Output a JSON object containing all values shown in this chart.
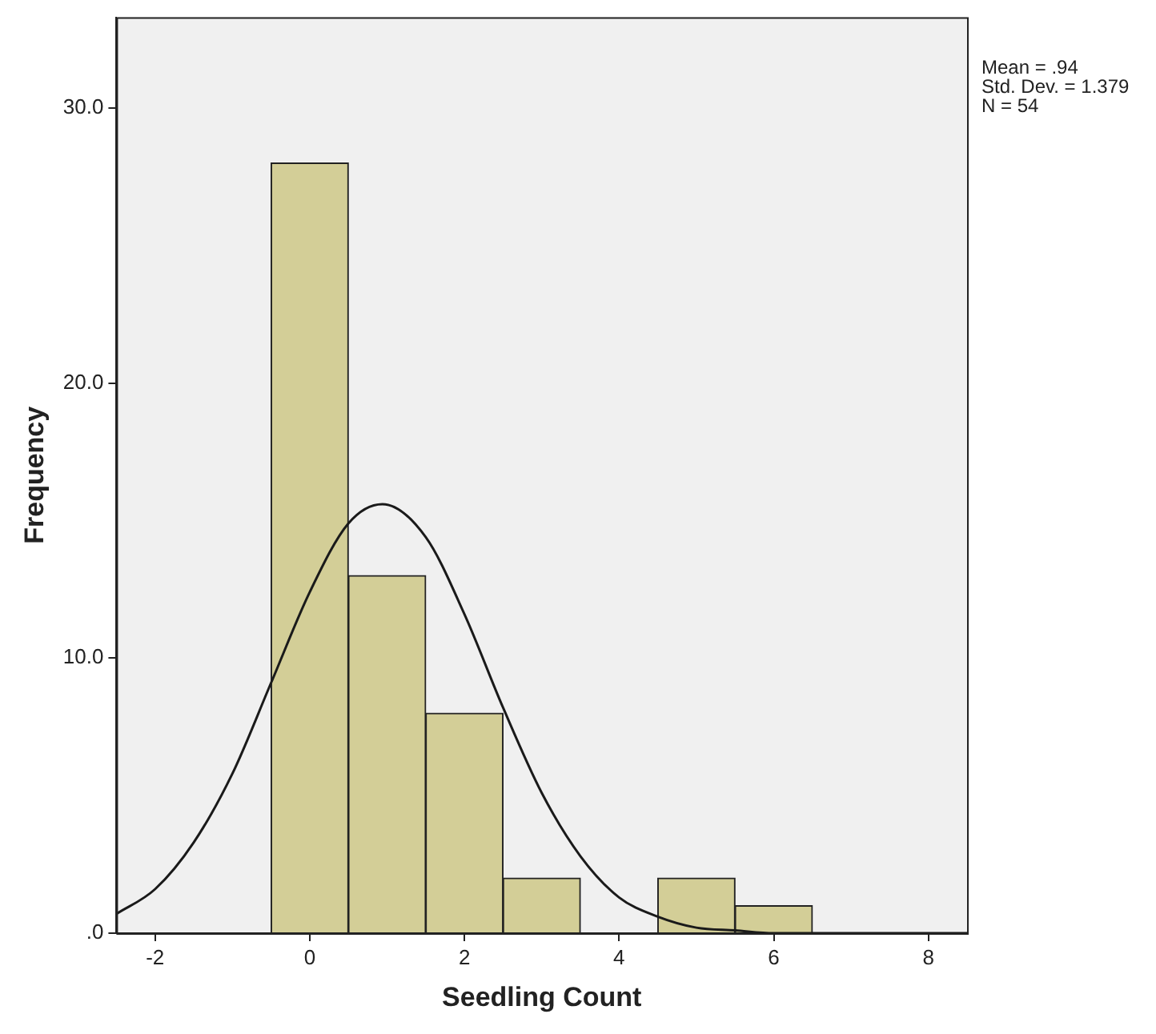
{
  "chart_data": {
    "type": "histogram",
    "xlabel": "Seedling Count",
    "ylabel": "Frequency",
    "bins": [
      -0.5,
      0.5,
      1.5,
      2.5,
      3.5,
      4.5,
      5.5,
      6.5
    ],
    "values": [
      28,
      13,
      8,
      2,
      0,
      2,
      1
    ],
    "color": "#d3ce97",
    "series": [
      {
        "type": "line",
        "color": "#1a1a1a",
        "x": [
          -2.5,
          -2,
          -1.5,
          -1,
          -0.5,
          0,
          0.5,
          0.94,
          1.5,
          2,
          2.5,
          3,
          3.5,
          4,
          4.5,
          5,
          5.5,
          6,
          6.5,
          7,
          7.5,
          8,
          8.5
        ],
        "values": [
          0.7,
          1.6,
          3.3,
          5.8,
          9.1,
          12.4,
          14.9,
          15.6,
          14.4,
          11.6,
          8.2,
          5.1,
          2.8,
          1.3,
          0.6,
          0.2,
          0.1,
          0,
          0,
          0,
          0,
          0,
          0
        ]
      }
    ],
    "xlim": [
      -2.5,
      8.5
    ],
    "xticks": [
      -2,
      0,
      2,
      4,
      6,
      8
    ],
    "ylim": [
      0,
      33.3
    ],
    "yticks": [
      {
        "value": 0,
        "label": ".0"
      },
      {
        "value": 10,
        "label": "10.0"
      },
      {
        "value": 20,
        "label": "20.0"
      },
      {
        "value": 30,
        "label": "30.0"
      }
    ],
    "grid": false,
    "legend": false,
    "marker": "none",
    "annotations": [
      "Mean = .94",
      "Std. Dev. = 1.379",
      "N = 54"
    ]
  }
}
